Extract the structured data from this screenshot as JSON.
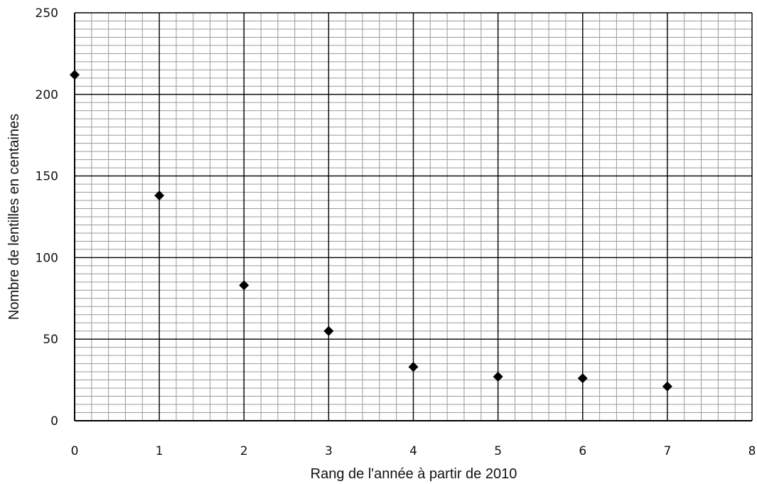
{
  "chart_data": {
    "type": "scatter",
    "title": "",
    "xlabel": "Rang de l'année à partir de 2010",
    "ylabel": "Nombre de lentilles en centaines",
    "xlim": [
      0,
      8
    ],
    "ylim": [
      0,
      250
    ],
    "x_ticks": [
      0,
      1,
      2,
      3,
      4,
      5,
      6,
      7,
      8
    ],
    "x_tick_labels": [
      "0",
      "1",
      "2",
      "3",
      "4",
      "5",
      "6",
      "7",
      "8"
    ],
    "y_ticks": [
      0,
      50,
      100,
      150,
      200,
      250
    ],
    "y_tick_labels": [
      "0",
      "50",
      "100",
      "150",
      "200",
      "250"
    ],
    "x_minor_step": 0.2,
    "y_minor_step": 5,
    "grid": true,
    "marker": "diamond",
    "colors": {
      "marker": "#000000",
      "major_grid": "#000000",
      "minor_grid": "#9a9a9a"
    },
    "x": [
      0,
      1,
      2,
      3,
      4,
      5,
      6,
      7
    ],
    "y": [
      212,
      138,
      83,
      55,
      33,
      27,
      26,
      21
    ]
  }
}
